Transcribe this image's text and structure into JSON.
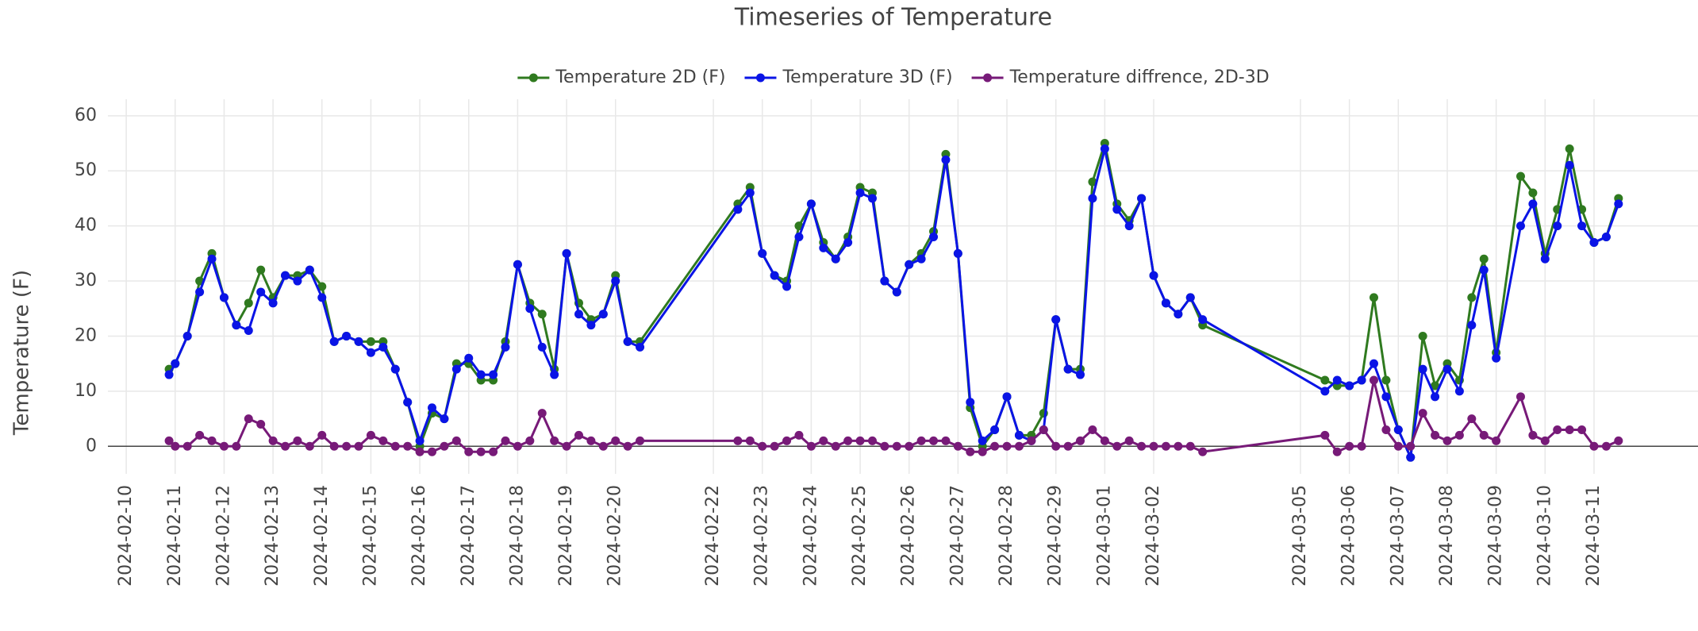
{
  "chart_data": {
    "type": "line",
    "title": "Timeseries of Temperature",
    "y_label": "Temperature (F)",
    "x": [
      "2024-02-10T21:00",
      "2024-02-11T00:00",
      "2024-02-11T06:00",
      "2024-02-11T12:00",
      "2024-02-11T18:00",
      "2024-02-12T00:00",
      "2024-02-12T06:00",
      "2024-02-12T12:00",
      "2024-02-12T18:00",
      "2024-02-13T00:00",
      "2024-02-13T06:00",
      "2024-02-13T12:00",
      "2024-02-13T18:00",
      "2024-02-14T00:00",
      "2024-02-14T06:00",
      "2024-02-14T12:00",
      "2024-02-14T18:00",
      "2024-02-15T00:00",
      "2024-02-15T06:00",
      "2024-02-15T12:00",
      "2024-02-15T18:00",
      "2024-02-16T00:00",
      "2024-02-16T06:00",
      "2024-02-16T12:00",
      "2024-02-16T18:00",
      "2024-02-17T00:00",
      "2024-02-17T06:00",
      "2024-02-17T12:00",
      "2024-02-17T18:00",
      "2024-02-18T00:00",
      "2024-02-18T06:00",
      "2024-02-18T12:00",
      "2024-02-18T18:00",
      "2024-02-19T00:00",
      "2024-02-19T06:00",
      "2024-02-19T12:00",
      "2024-02-19T18:00",
      "2024-02-20T00:00",
      "2024-02-20T06:00",
      "2024-02-20T12:00",
      "2024-02-22T12:00",
      "2024-02-22T18:00",
      "2024-02-23T00:00",
      "2024-02-23T06:00",
      "2024-02-23T12:00",
      "2024-02-23T18:00",
      "2024-02-24T00:00",
      "2024-02-24T06:00",
      "2024-02-24T12:00",
      "2024-02-24T18:00",
      "2024-02-25T00:00",
      "2024-02-25T06:00",
      "2024-02-25T12:00",
      "2024-02-25T18:00",
      "2024-02-26T00:00",
      "2024-02-26T06:00",
      "2024-02-26T12:00",
      "2024-02-26T18:00",
      "2024-02-27T00:00",
      "2024-02-27T06:00",
      "2024-02-27T12:00",
      "2024-02-27T18:00",
      "2024-02-28T00:00",
      "2024-02-28T06:00",
      "2024-02-28T12:00",
      "2024-02-28T18:00",
      "2024-02-29T00:00",
      "2024-02-29T06:00",
      "2024-02-29T12:00",
      "2024-02-29T18:00",
      "2024-03-01T00:00",
      "2024-03-01T06:00",
      "2024-03-01T12:00",
      "2024-03-01T18:00",
      "2024-03-02T00:00",
      "2024-03-02T06:00",
      "2024-03-02T12:00",
      "2024-03-02T18:00",
      "2024-03-03T00:00",
      "2024-03-05T12:00",
      "2024-03-05T18:00",
      "2024-03-06T00:00",
      "2024-03-06T06:00",
      "2024-03-06T12:00",
      "2024-03-06T18:00",
      "2024-03-07T00:00",
      "2024-03-07T06:00",
      "2024-03-07T12:00",
      "2024-03-07T18:00",
      "2024-03-08T00:00",
      "2024-03-08T06:00",
      "2024-03-08T12:00",
      "2024-03-08T18:00",
      "2024-03-09T00:00",
      "2024-03-09T12:00",
      "2024-03-09T18:00",
      "2024-03-10T00:00",
      "2024-03-10T06:00",
      "2024-03-10T12:00",
      "2024-03-10T18:00",
      "2024-03-11T00:00",
      "2024-03-11T06:00",
      "2024-03-11T12:00"
    ],
    "series": [
      {
        "name": "Temperature 2D (F)",
        "color": "#2f7a1f",
        "values": [
          14,
          15,
          20,
          30,
          35,
          27,
          22,
          26,
          32,
          27,
          31,
          31,
          32,
          29,
          19,
          20,
          19,
          19,
          19,
          14,
          8,
          0,
          6,
          5,
          15,
          15,
          12,
          12,
          19,
          33,
          26,
          24,
          14,
          35,
          26,
          23,
          24,
          31,
          19,
          19,
          44,
          47,
          35,
          31,
          30,
          40,
          44,
          37,
          34,
          38,
          47,
          46,
          30,
          28,
          33,
          35,
          39,
          53,
          35,
          7,
          0,
          3,
          9,
          2,
          2,
          6,
          23,
          14,
          14,
          48,
          55,
          44,
          41,
          45,
          31,
          26,
          24,
          27,
          22,
          12,
          11,
          11,
          12,
          27,
          12,
          3,
          -2,
          20,
          11,
          15,
          12,
          27,
          34,
          17,
          49,
          46,
          35,
          43,
          54,
          43,
          37,
          38,
          45
        ]
      },
      {
        "name": "Temperature 3D (F)",
        "color": "#0a14e6",
        "values": [
          13,
          15,
          20,
          28,
          34,
          27,
          22,
          21,
          28,
          26,
          31,
          30,
          32,
          27,
          19,
          20,
          19,
          17,
          18,
          14,
          8,
          1,
          7,
          5,
          14,
          16,
          13,
          13,
          18,
          33,
          25,
          18,
          13,
          35,
          24,
          22,
          24,
          30,
          19,
          18,
          43,
          46,
          35,
          31,
          29,
          38,
          44,
          36,
          34,
          37,
          46,
          45,
          30,
          28,
          33,
          34,
          38,
          52,
          35,
          8,
          1,
          3,
          9,
          2,
          1,
          3,
          23,
          14,
          13,
          45,
          54,
          43,
          40,
          45,
          31,
          26,
          24,
          27,
          23,
          10,
          12,
          11,
          12,
          15,
          9,
          3,
          -2,
          14,
          9,
          14,
          10,
          22,
          32,
          16,
          40,
          44,
          34,
          40,
          51,
          40,
          37,
          38,
          44
        ]
      },
      {
        "name": "Temperature diffrence, 2D-3D",
        "color": "#771a78",
        "values": [
          1,
          0,
          0,
          2,
          1,
          0,
          0,
          5,
          4,
          1,
          0,
          1,
          0,
          2,
          0,
          0,
          0,
          2,
          1,
          0,
          0,
          -1,
          -1,
          0,
          1,
          -1,
          -1,
          -1,
          1,
          0,
          1,
          6,
          1,
          0,
          2,
          1,
          0,
          1,
          0,
          1,
          1,
          1,
          0,
          0,
          1,
          2,
          0,
          1,
          0,
          1,
          1,
          1,
          0,
          0,
          0,
          1,
          1,
          1,
          0,
          -1,
          -1,
          0,
          0,
          0,
          1,
          3,
          0,
          0,
          1,
          3,
          1,
          0,
          1,
          0,
          0,
          0,
          0,
          0,
          -1,
          2,
          -1,
          0,
          0,
          12,
          3,
          0,
          0,
          6,
          2,
          1,
          2,
          5,
          2,
          1,
          9,
          2,
          1,
          3,
          3,
          3,
          0,
          0,
          1
        ]
      }
    ],
    "xlim": [
      "2024-02-09T15:00",
      "2024-03-13T03:00"
    ],
    "xticks": [
      "2024-02-10",
      "2024-02-11",
      "2024-02-12",
      "2024-02-13",
      "2024-02-14",
      "2024-02-15",
      "2024-02-16",
      "2024-02-17",
      "2024-02-18",
      "2024-02-19",
      "2024-02-20",
      "2024-02-22",
      "2024-02-23",
      "2024-02-24",
      "2024-02-25",
      "2024-02-26",
      "2024-02-27",
      "2024-02-28",
      "2024-02-29",
      "2024-03-01",
      "2024-03-02",
      "2024-03-05",
      "2024-03-06",
      "2024-03-07",
      "2024-03-08",
      "2024-03-09",
      "2024-03-10",
      "2024-03-11"
    ],
    "ylim": [
      -5,
      63
    ],
    "yticks": [
      0,
      10,
      20,
      30,
      40,
      50,
      60
    ],
    "grid": true,
    "legend": "top"
  }
}
